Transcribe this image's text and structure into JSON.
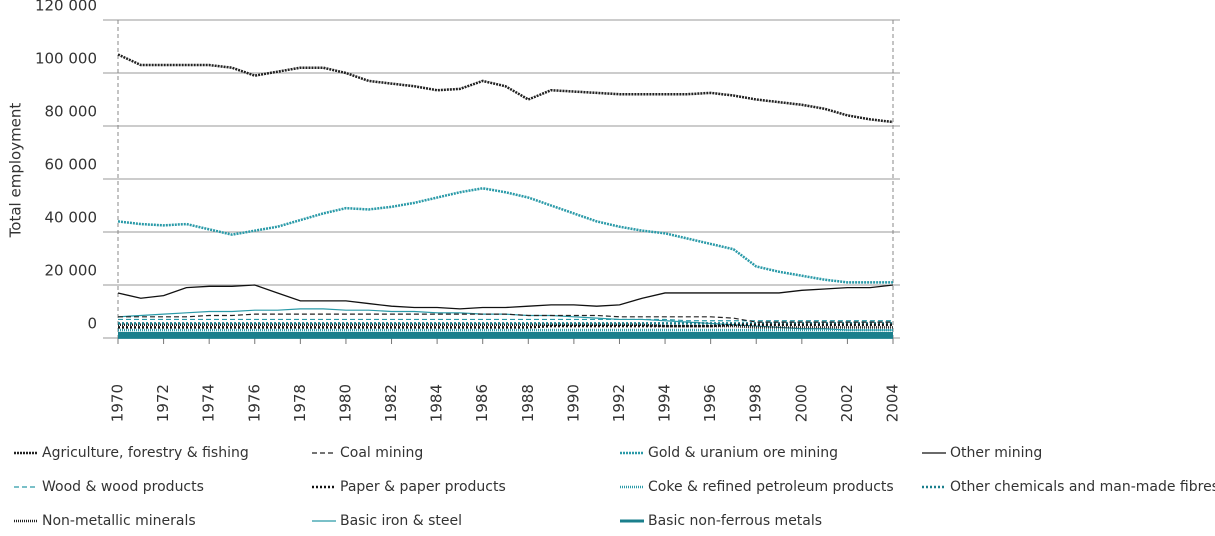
{
  "chart_data": {
    "type": "line",
    "y_label": "Total employment",
    "x": [
      1970,
      1971,
      1972,
      1973,
      1974,
      1975,
      1976,
      1977,
      1978,
      1979,
      1980,
      1981,
      1982,
      1983,
      1984,
      1985,
      1986,
      1987,
      1988,
      1989,
      1990,
      1991,
      1992,
      1993,
      1994,
      1995,
      1996,
      1997,
      1998,
      1999,
      2000,
      2001,
      2002,
      2003,
      2004
    ],
    "xlim": [
      1970,
      2004
    ],
    "xticks": [
      1970,
      1972,
      1974,
      1976,
      1978,
      1980,
      1982,
      1984,
      1986,
      1988,
      1990,
      1992,
      1994,
      1996,
      1998,
      2000,
      2002,
      2004
    ],
    "ylim": [
      0,
      120000
    ],
    "yticks": [
      0,
      {
        "value": 20000,
        "label": "20 000"
      },
      {
        "value": 40000,
        "label": "40 000"
      },
      {
        "value": 60000,
        "label": "60 000"
      },
      {
        "value": 80000,
        "label": "80 000"
      },
      {
        "value": 100000,
        "label": "100 000"
      },
      {
        "value": 120000,
        "label": "120 000"
      }
    ],
    "grid": true,
    "series": [
      {
        "name": "Agriculture, forestry & fishing",
        "color": "#222222",
        "dash": "2 1",
        "width": 2.5,
        "values": [
          107000,
          103000,
          103000,
          103000,
          103000,
          102000,
          99000,
          100500,
          102000,
          102000,
          100000,
          97000,
          96000,
          95000,
          93500,
          94000,
          97000,
          95000,
          90000,
          93500,
          93000,
          92500,
          92000,
          92000,
          92000,
          92000,
          92500,
          91500,
          90000,
          89000,
          88000,
          86500,
          84000,
          82500,
          81500
        ]
      },
      {
        "name": "Coal mining",
        "color": "#222222",
        "dash": "5 3",
        "width": 1.2,
        "values": [
          8000,
          8000,
          8000,
          8000,
          8500,
          8500,
          9000,
          9000,
          9000,
          9000,
          9000,
          9000,
          9000,
          9000,
          9000,
          9000,
          9000,
          9000,
          8500,
          8500,
          8500,
          8500,
          8000,
          8000,
          8000,
          8000,
          8000,
          7500,
          6000,
          6000,
          6000,
          6000,
          6000,
          6000,
          6000
        ]
      },
      {
        "name": "Gold & uranium ore mining",
        "color": "#2a9aa8",
        "dash": "2 1",
        "width": 2.5,
        "values": [
          44000,
          43000,
          42500,
          43000,
          41000,
          39000,
          40500,
          42000,
          44500,
          47000,
          49000,
          48500,
          49500,
          51000,
          53000,
          55000,
          56500,
          55000,
          53000,
          50000,
          47000,
          44000,
          42000,
          40500,
          39500,
          37500,
          35500,
          33500,
          27000,
          25000,
          23500,
          22000,
          21000,
          21000,
          21000
        ]
      },
      {
        "name": "Other mining",
        "color": "#111111",
        "dash": "",
        "width": 1.3,
        "values": [
          17000,
          15000,
          16000,
          19000,
          19500,
          19500,
          20000,
          17000,
          14000,
          14000,
          14000,
          13000,
          12000,
          11500,
          11500,
          11000,
          11500,
          11500,
          12000,
          12500,
          12500,
          12000,
          12500,
          15000,
          17000,
          17000,
          17000,
          17000,
          17000,
          17000,
          18000,
          18500,
          19000,
          19000,
          20000
        ]
      },
      {
        "name": "Wood & wood products",
        "color": "#2a9aa8",
        "dash": "5 3",
        "width": 1.2,
        "values": [
          7000,
          7000,
          7000,
          7000,
          7000,
          7000,
          7000,
          7000,
          7000,
          7000,
          7000,
          7000,
          7000,
          7000,
          7000,
          7000,
          7000,
          7000,
          7000,
          7000,
          7000,
          7000,
          7000,
          7000,
          7000,
          6500,
          6500,
          6500,
          6500,
          6500,
          6500,
          6500,
          6500,
          6500,
          6500
        ]
      },
      {
        "name": "Paper & paper products",
        "color": "#111111",
        "dash": "2 2",
        "width": 2.5,
        "values": [
          4000,
          4000,
          4000,
          4000,
          4000,
          4000,
          4000,
          4000,
          4000,
          4000,
          4000,
          4000,
          4000,
          4000,
          4000,
          4000,
          4000,
          4000,
          4000,
          4500,
          4500,
          4500,
          4500,
          4500,
          4500,
          4500,
          4500,
          5000,
          5000,
          5000,
          5000,
          5000,
          5000,
          5000,
          5000
        ]
      },
      {
        "name": "Coke & refined petroleum products",
        "color": "#2a9aa8",
        "dash": "1 1",
        "width": 2.5,
        "values": [
          3000,
          3000,
          3000,
          3000,
          3000,
          3000,
          3000,
          3000,
          3000,
          3000,
          3000,
          3000,
          3000,
          3000,
          3000,
          3000,
          3000,
          3000,
          3000,
          3000,
          3000,
          3000,
          3000,
          3000,
          3000,
          3000,
          3000,
          3000,
          3000,
          3000,
          3000,
          3000,
          3000,
          3000,
          3000
        ]
      },
      {
        "name": "Other chemicals and man-made fibres",
        "color": "#1a7f8c",
        "dash": "2 2",
        "width": 2.5,
        "values": [
          5500,
          5500,
          5500,
          5500,
          5500,
          5500,
          5500,
          5500,
          5500,
          5500,
          5500,
          5500,
          5500,
          5500,
          5500,
          5500,
          5500,
          5500,
          5500,
          5500,
          5500,
          5500,
          5500,
          5500,
          5500,
          5500,
          5500,
          5500,
          5500,
          5500,
          5500,
          5500,
          5500,
          5500,
          5500
        ]
      },
      {
        "name": "Non-metallic minerals",
        "color": "#222222",
        "dash": "1 1",
        "width": 2.5,
        "values": [
          5000,
          5000,
          5000,
          5000,
          5000,
          5000,
          5000,
          5000,
          5000,
          5000,
          5000,
          5000,
          5000,
          5000,
          5000,
          5000,
          5000,
          5000,
          5000,
          5000,
          5000,
          5000,
          5000,
          5000,
          4500,
          4500,
          4500,
          4500,
          4000,
          4000,
          4000,
          4000,
          4000,
          4000,
          4000
        ]
      },
      {
        "name": "Basic iron & steel",
        "color": "#2a9aa8",
        "dash": "",
        "width": 1.2,
        "values": [
          8000,
          8500,
          9000,
          9500,
          10000,
          10000,
          10500,
          10500,
          11000,
          11000,
          10500,
          10500,
          10000,
          10000,
          9500,
          9500,
          9000,
          9000,
          8500,
          8500,
          8000,
          7500,
          7000,
          7000,
          6500,
          6000,
          5500,
          5000,
          4500,
          4000,
          3500,
          3500,
          3000,
          3000,
          3000
        ]
      },
      {
        "name": "Basic non-ferrous metals",
        "color": "#1a7f8c",
        "dash": "",
        "width": 7,
        "values": [
          1000,
          1000,
          1000,
          1000,
          1000,
          1000,
          1000,
          1000,
          1000,
          1000,
          1000,
          1000,
          1000,
          1000,
          1000,
          1000,
          1000,
          1000,
          1000,
          1000,
          1000,
          1000,
          1000,
          1000,
          1000,
          1000,
          1000,
          1000,
          1000,
          1000,
          1000,
          1000,
          1000,
          1000,
          1000
        ]
      }
    ]
  }
}
